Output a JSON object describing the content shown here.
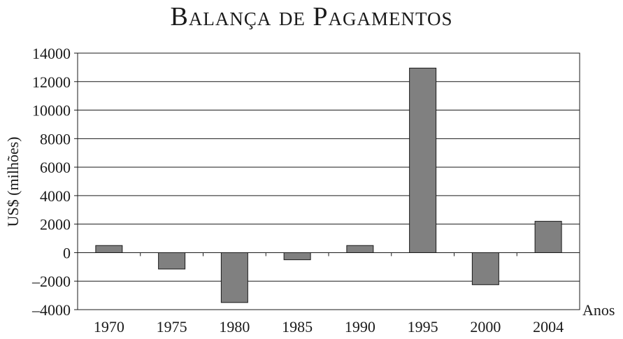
{
  "chart_data": {
    "type": "bar",
    "title": "Balança de Pagamentos",
    "xlabel": "Anos",
    "ylabel": "US$ (milhões)",
    "categories": [
      "1970",
      "1975",
      "1980",
      "1985",
      "1990",
      "1995",
      "2000",
      "2004"
    ],
    "values": [
      500,
      -1150,
      -3500,
      -500,
      500,
      12950,
      -2250,
      2200
    ],
    "ylim": [
      -4000,
      14000
    ],
    "yticks": [
      14000,
      12000,
      10000,
      8000,
      6000,
      4000,
      2000,
      0,
      -2000,
      -4000
    ],
    "ytick_labels": [
      "14000",
      "12000",
      "10000",
      "8000",
      "6000",
      "4000",
      "2000",
      "0",
      "–2000",
      "–4000"
    ],
    "grid": true,
    "colors": {
      "bar": "#808080",
      "bar_edge": "#1a1a1a",
      "grid": "#1a1a1a"
    }
  }
}
